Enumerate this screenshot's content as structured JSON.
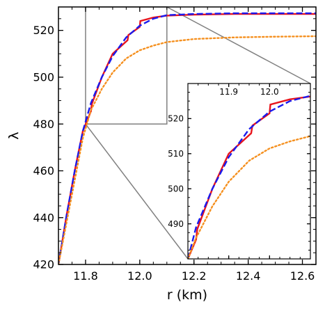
{
  "chart_data": [
    {
      "type": "line",
      "title": "",
      "xlabel": "r (km)",
      "ylabel": "λ",
      "xlim": [
        11.7,
        12.65
      ],
      "ylim": [
        420,
        530
      ],
      "xticks": [
        11.8,
        12.0,
        12.2,
        12.4,
        12.6
      ],
      "xtick_labels": [
        "11.8",
        "12.0",
        "12.2",
        "12.4",
        "12.6"
      ],
      "yticks": [
        420,
        440,
        460,
        480,
        500,
        520
      ],
      "ytick_labels": [
        "420",
        "440",
        "460",
        "480",
        "500",
        "520"
      ],
      "grid": false,
      "legend": false,
      "series": [
        {
          "style": "solid",
          "color": "#e8141c",
          "x": [
            11.7,
            11.73,
            11.76,
            11.79,
            11.82,
            11.823,
            11.86,
            11.9,
            11.955,
            11.958,
            12.0,
            12.002,
            12.05,
            12.1,
            12.2,
            12.35,
            12.5,
            12.65
          ],
          "y": [
            420,
            441,
            460,
            477,
            485.5,
            488.5,
            500,
            510,
            515.8,
            518,
            521.5,
            524,
            525.5,
            526.3,
            526.7,
            527,
            527,
            527
          ]
        },
        {
          "style": "dashed",
          "color": "#1a1aee",
          "x": [
            11.7,
            11.73,
            11.76,
            11.79,
            11.82,
            11.86,
            11.9,
            11.95,
            12.0,
            12.05,
            12.1,
            12.2,
            12.35,
            12.5,
            12.65
          ],
          "y": [
            420,
            441,
            460,
            477,
            489,
            500,
            509,
            517,
            522,
            525,
            526.5,
            527,
            527.3,
            527.3,
            527.3
          ]
        },
        {
          "style": "dotted",
          "color": "#f5901f",
          "x": [
            11.7,
            11.73,
            11.76,
            11.79,
            11.82,
            11.86,
            11.9,
            11.95,
            12.0,
            12.05,
            12.1,
            12.2,
            12.35,
            12.5,
            12.65
          ],
          "y": [
            420,
            438,
            456,
            474,
            486,
            495,
            502,
            508,
            511.5,
            513.5,
            515,
            516.3,
            517,
            517.3,
            517.5
          ]
        }
      ]
    },
    {
      "type": "line",
      "title": "",
      "xlabel": "",
      "ylabel": "",
      "xlim": [
        11.8,
        12.1
      ],
      "ylim": [
        480,
        530
      ],
      "xticks": [
        11.9,
        12.0
      ],
      "xtick_labels": [
        "11.9",
        "12.0"
      ],
      "yticks": [
        490,
        500,
        510,
        520
      ],
      "ytick_labels": [
        "490",
        "500",
        "510",
        "520"
      ],
      "grid": false,
      "legend": false,
      "series": [
        {
          "style": "solid",
          "color": "#e8141c",
          "x": [
            11.8,
            11.82,
            11.823,
            11.86,
            11.9,
            11.955,
            11.958,
            12.0,
            12.002,
            12.05,
            12.1
          ],
          "y": [
            480,
            485.5,
            488.5,
            500,
            510,
            515.8,
            518,
            521.5,
            524,
            525.5,
            526.3
          ]
        },
        {
          "style": "dashed",
          "color": "#1a1aee",
          "x": [
            11.8,
            11.82,
            11.86,
            11.9,
            11.95,
            12.0,
            12.05,
            12.1
          ],
          "y": [
            480,
            489,
            500,
            509,
            517,
            522,
            525,
            526.5
          ]
        },
        {
          "style": "dotted",
          "color": "#f5901f",
          "x": [
            11.8,
            11.82,
            11.86,
            11.9,
            11.95,
            12.0,
            12.05,
            12.1
          ],
          "y": [
            480,
            486,
            495,
            502,
            508,
            511.5,
            513.5,
            515
          ]
        }
      ]
    }
  ]
}
